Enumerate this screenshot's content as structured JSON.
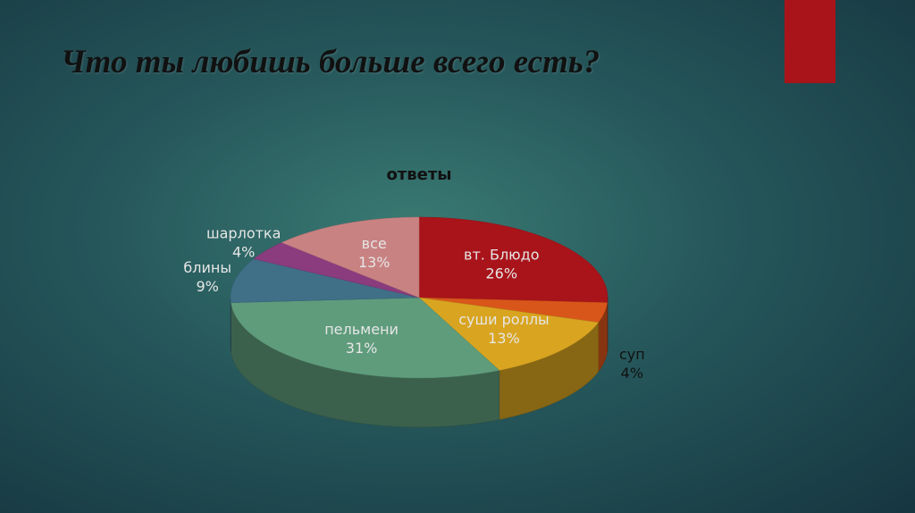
{
  "header": {
    "title": "Что ты любишь больше всего есть?"
  },
  "chart_data": {
    "type": "pie",
    "title": "ответы",
    "categories": [
      "вт. Блюдо",
      "суп",
      "суши роллы",
      "пельмени",
      "блины",
      "шарлотка",
      "все"
    ],
    "values": [
      26,
      4,
      13,
      31,
      9,
      4,
      13
    ],
    "value_labels": [
      "26%",
      "4%",
      "13%",
      "31%",
      "9%",
      "4%",
      "13%"
    ],
    "colors": [
      "#a8141a",
      "#d9561a",
      "#d9a520",
      "#5f9c7c",
      "#3f7088",
      "#8a3c7e",
      "#c98282"
    ]
  }
}
